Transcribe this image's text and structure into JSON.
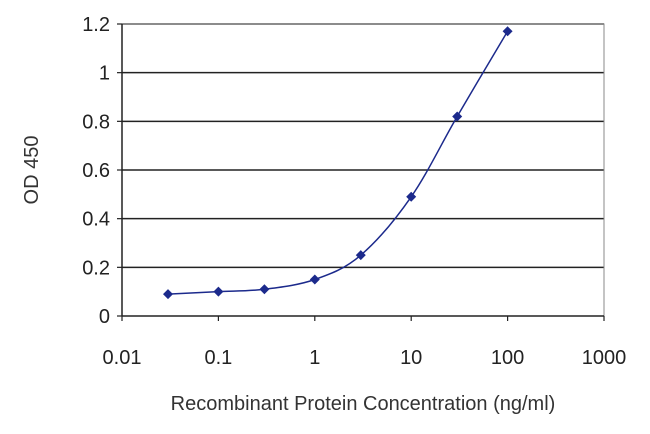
{
  "chart_data": {
    "type": "scatter",
    "title": "",
    "xlabel": "Recombinant Protein Concentration (ng/ml)",
    "ylabel": "OD 450",
    "x_scale": "log",
    "xlim": [
      0.01,
      1000
    ],
    "ylim": [
      0,
      1.2
    ],
    "x_ticks": [
      0.01,
      0.1,
      1,
      10,
      100,
      1000
    ],
    "x_tick_labels": [
      "0.01",
      "0.1",
      "1",
      "10",
      "100",
      "1000"
    ],
    "y_ticks": [
      0,
      0.2,
      0.4,
      0.6,
      0.8,
      1,
      1.2
    ],
    "y_tick_labels": [
      "0",
      "0.2",
      "0.4",
      "0.6",
      "0.8",
      "1",
      "1.2"
    ],
    "grid": "horizontal",
    "legend": "none",
    "series": [
      {
        "x": [
          0.03,
          0.1,
          0.3,
          1,
          3,
          10,
          30,
          100
        ],
        "y": [
          0.09,
          0.1,
          0.11,
          0.15,
          0.25,
          0.49,
          0.82,
          1.17
        ],
        "color": "#1c2a8c",
        "fit_line": "smooth"
      }
    ]
  }
}
